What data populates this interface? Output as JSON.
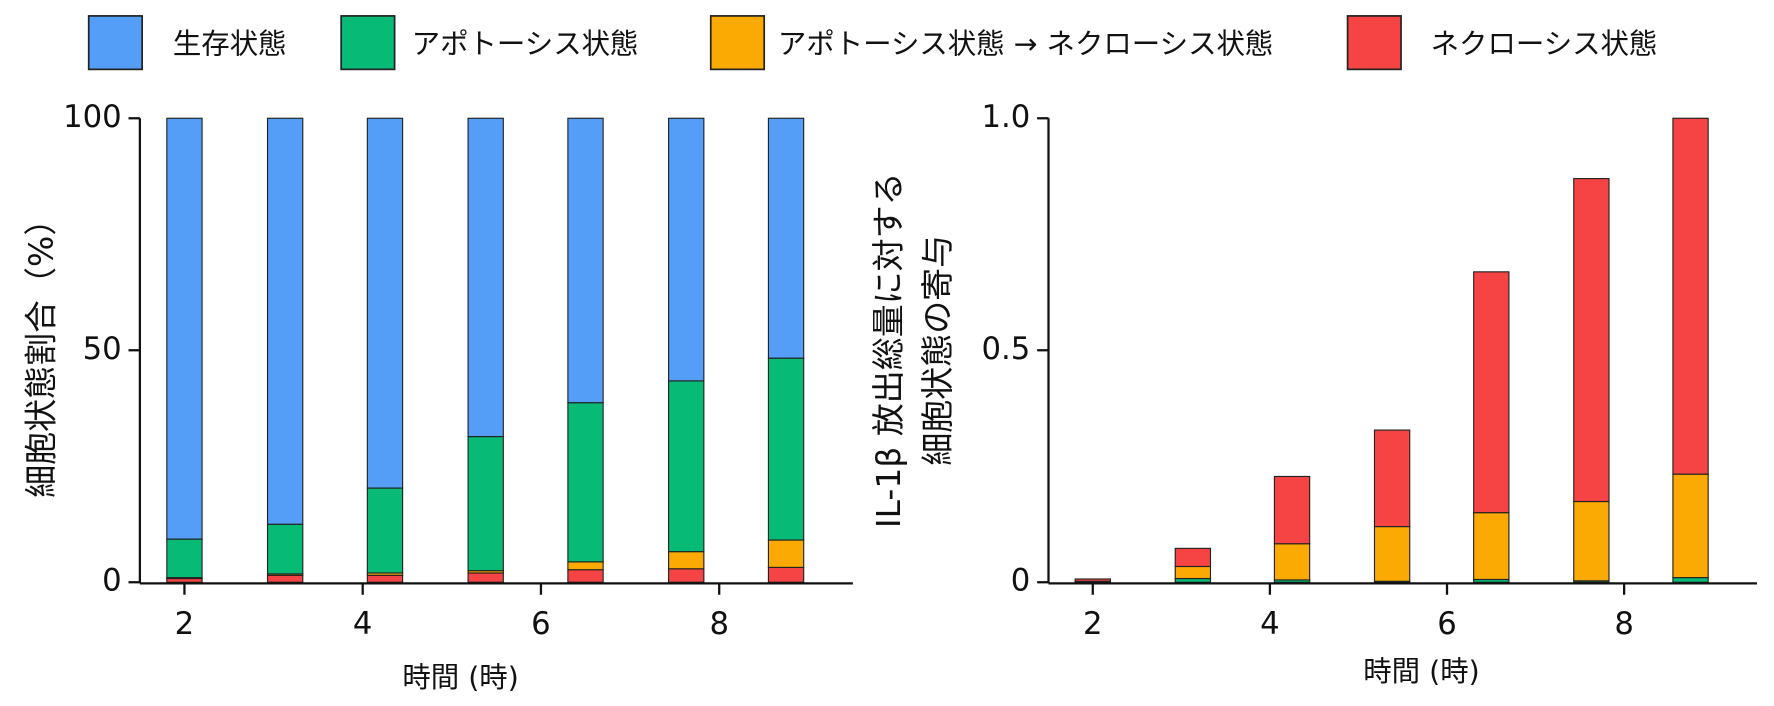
{
  "chart_data": [
    {
      "type": "stacked_bar",
      "x": [
        2,
        3.13,
        4.25,
        5.38,
        6.5,
        7.63,
        8.75
      ],
      "xlim": [
        1.5,
        9.5
      ],
      "xticks": [
        2,
        4,
        6,
        8
      ],
      "ylim": [
        0,
        100
      ],
      "yticks": [
        0,
        50,
        100
      ],
      "xlabel": "時間 (時)",
      "ylabel": [
        "細胞状態割合（%）"
      ],
      "series": [
        {
          "name": "生存状態",
          "color": "#559ef7",
          "values": [
            90.7,
            87.5,
            79.7,
            68.6,
            61.3,
            56.6,
            51.7
          ]
        },
        {
          "name": "アポトーシス状態",
          "color": "#07bb77",
          "values": [
            8.3,
            10.7,
            18.3,
            28.9,
            34.3,
            36.8,
            39.2
          ]
        },
        {
          "name": "アポトーシス状態 → ネクローシス状態",
          "color": "#fbaa03",
          "values": [
            0.2,
            0.3,
            0.5,
            0.5,
            1.7,
            3.7,
            5.9
          ]
        },
        {
          "name": "ネクローシス状態",
          "color": "#f64444",
          "values": [
            0.8,
            1.5,
            1.5,
            2,
            2.7,
            2.9,
            3.2
          ]
        }
      ]
    },
    {
      "type": "stacked_bar",
      "x": [
        2,
        3.13,
        4.25,
        5.38,
        6.5,
        7.63,
        8.75
      ],
      "xlim": [
        1.5,
        9.5
      ],
      "xticks": [
        2,
        4,
        6,
        8
      ],
      "ylim": [
        0,
        1
      ],
      "yticks": [
        0,
        0.5,
        {
          "value": 1,
          "label": "1.0"
        }
      ],
      "xlabel": "時間 (時)",
      "ylabel": [
        "IL-1β 放出総量に対する",
        "細胞状態の寄与"
      ],
      "series": [
        {
          "name": "アポトーシス状態",
          "color": "#07bb77",
          "values": [
            0.001,
            0.008,
            0.005,
            0.002,
            0.006,
            0.003,
            0.01
          ]
        },
        {
          "name": "アポトーシス状態 → ネクローシス状態",
          "color": "#fbaa03",
          "values": [
            0.001,
            0.026,
            0.078,
            0.118,
            0.144,
            0.171,
            0.223
          ]
        },
        {
          "name": "ネクローシス状態",
          "color": "#f64444",
          "values": [
            0.005,
            0.039,
            0.145,
            0.208,
            0.519,
            0.696,
            0.767
          ]
        }
      ]
    }
  ]
}
